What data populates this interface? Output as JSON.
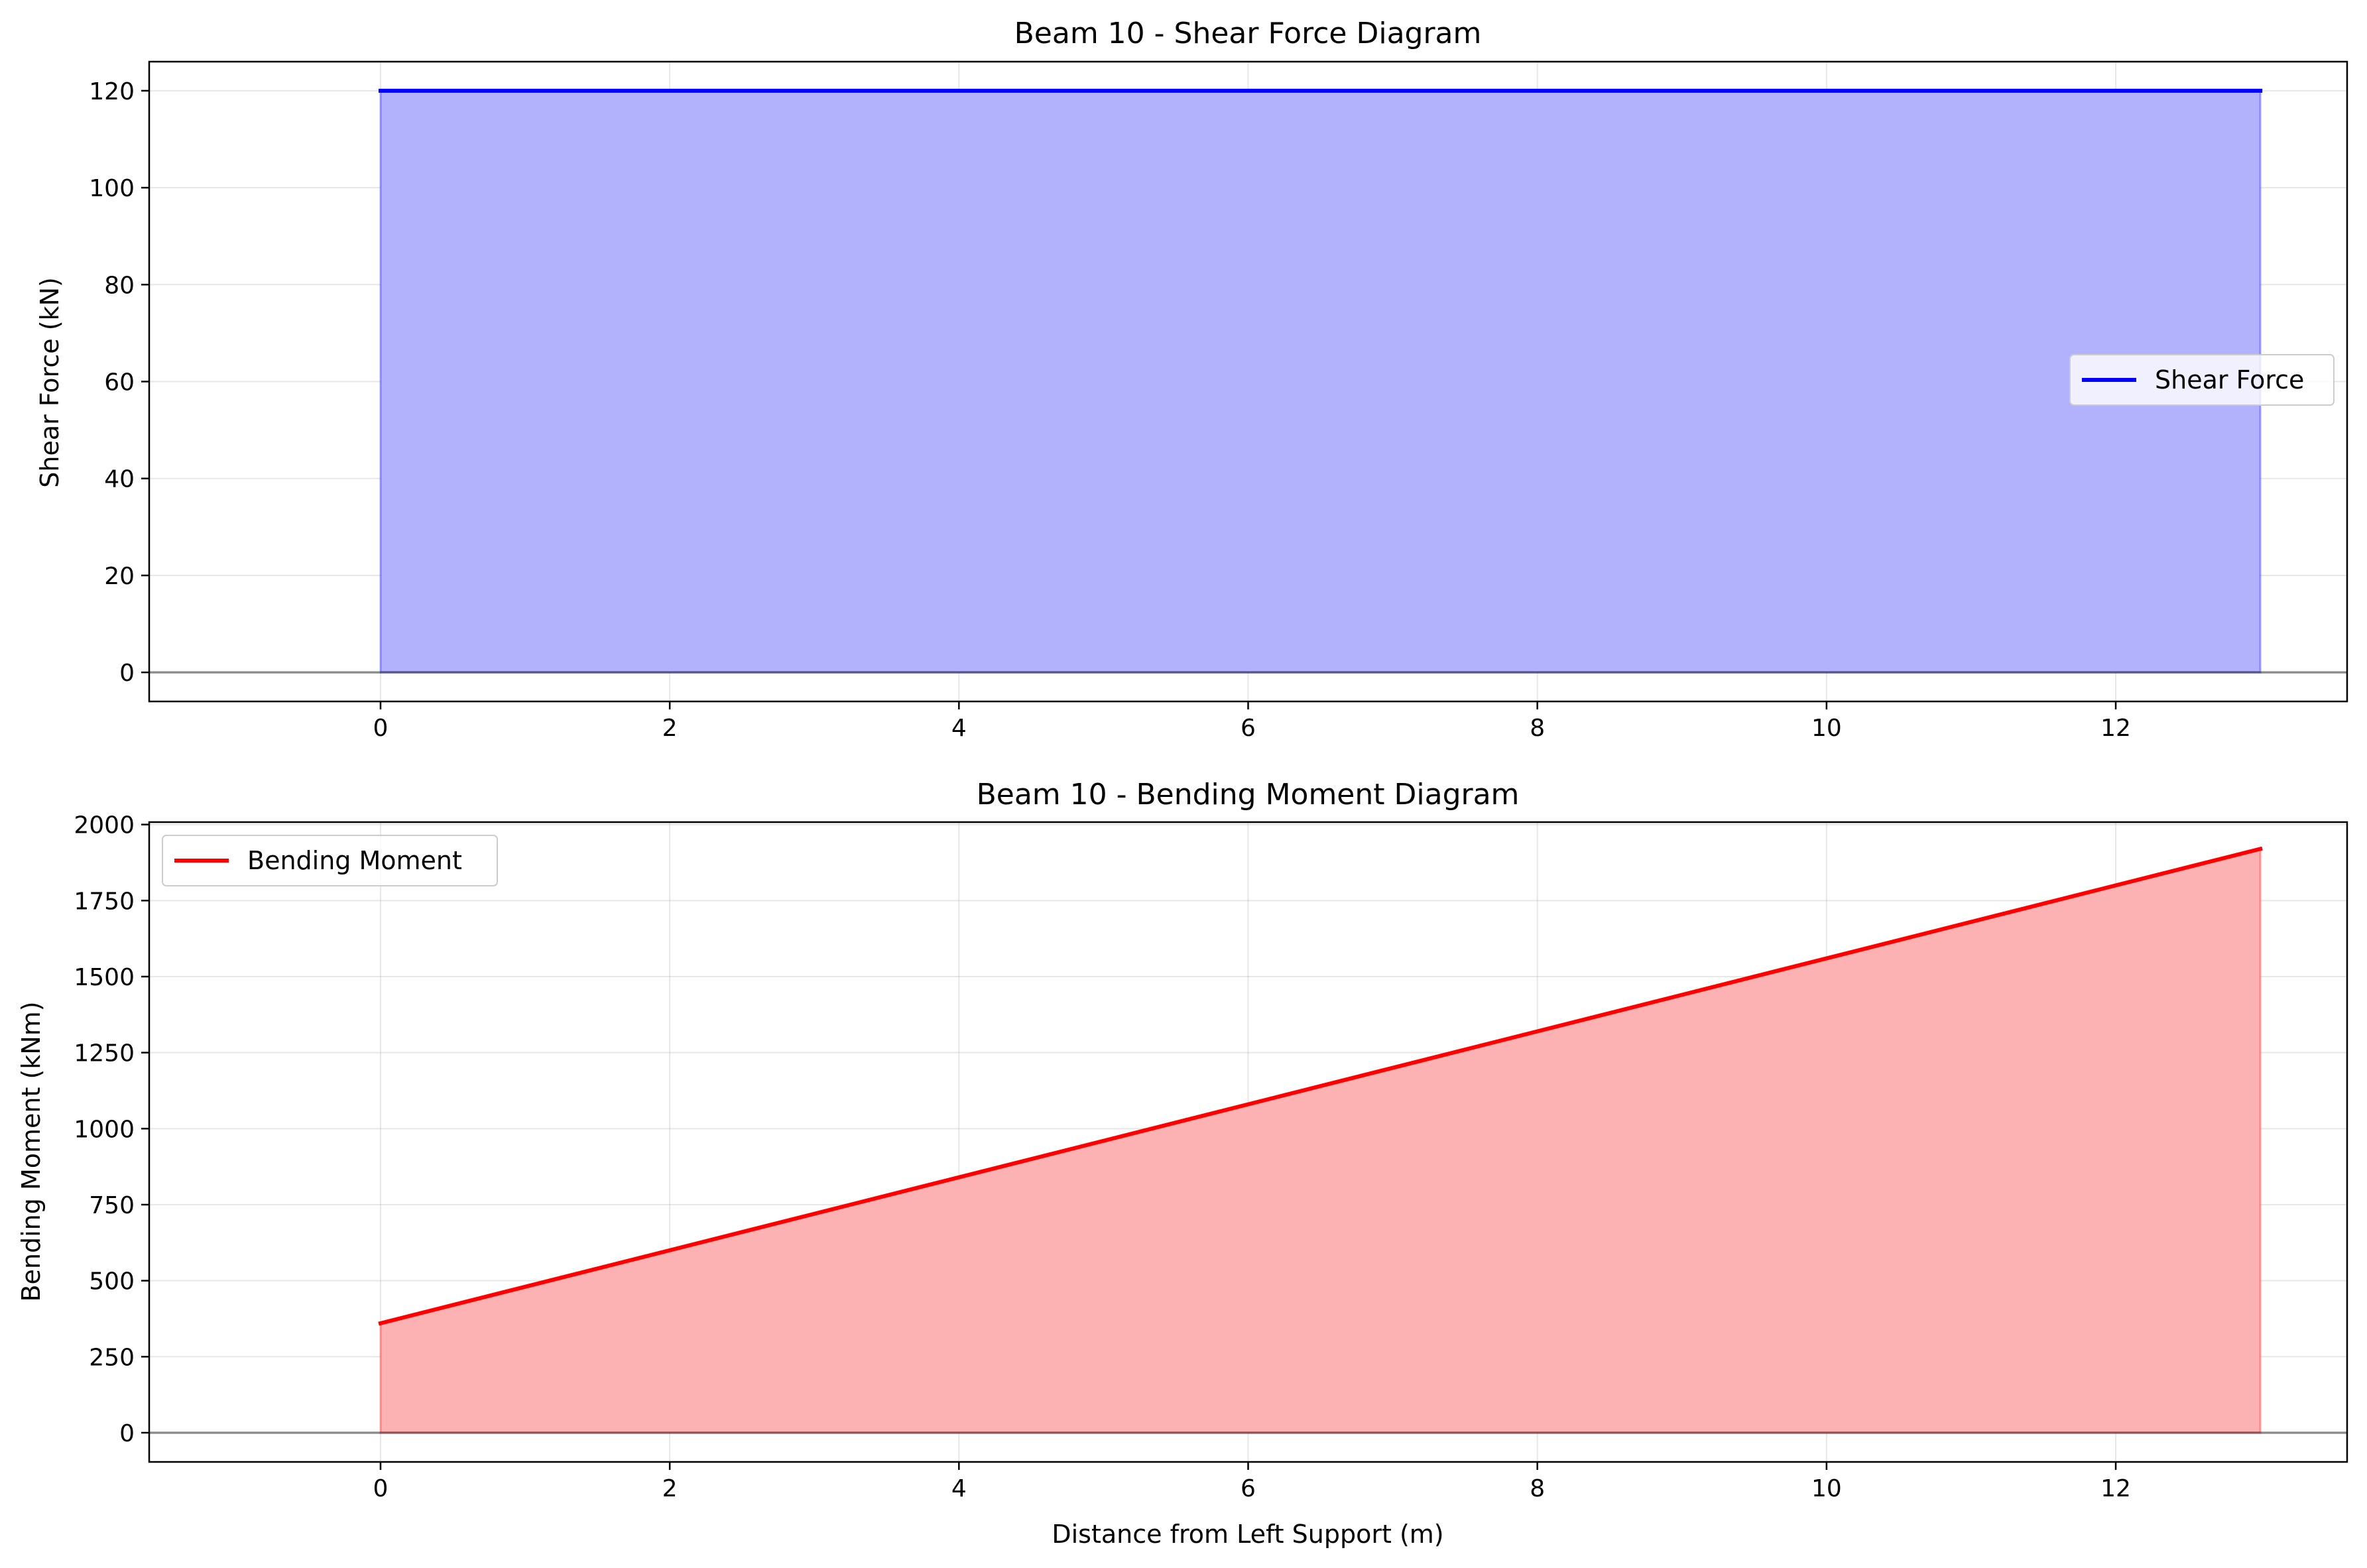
{
  "chart_data": [
    {
      "type": "area",
      "title": "Beam 10 - Shear Force Diagram",
      "xlabel": "",
      "ylabel": "Shear Force (kN)",
      "xlim": [
        -1.6,
        13.6
      ],
      "ylim": [
        -6,
        126
      ],
      "x_ticks": [
        0,
        2,
        4,
        6,
        8,
        10,
        12
      ],
      "y_ticks": [
        0,
        20,
        40,
        60,
        80,
        100,
        120
      ],
      "grid": true,
      "legend_position": "center-right",
      "series": [
        {
          "name": "Shear Force",
          "color": "#0000ff",
          "fill_color": "#b2b2fc",
          "x": [
            0,
            13
          ],
          "values": [
            120,
            120
          ]
        }
      ]
    },
    {
      "type": "area",
      "title": "Beam 10 - Bending Moment Diagram",
      "xlabel": "Distance from Left Support (m)",
      "ylabel": "Bending Moment (kNm)",
      "xlim": [
        -1.6,
        13.6
      ],
      "ylim": [
        -96,
        2008
      ],
      "x_ticks": [
        0,
        2,
        4,
        6,
        8,
        10,
        12
      ],
      "y_ticks": [
        0,
        250,
        500,
        750,
        1000,
        1250,
        1500,
        1750,
        2000
      ],
      "grid": true,
      "legend_position": "upper-left",
      "series": [
        {
          "name": "Bending Moment",
          "color": "#ff0000",
          "fill_color": "#fcb2b2",
          "x": [
            0,
            13
          ],
          "values": [
            360,
            1920
          ]
        }
      ]
    }
  ]
}
